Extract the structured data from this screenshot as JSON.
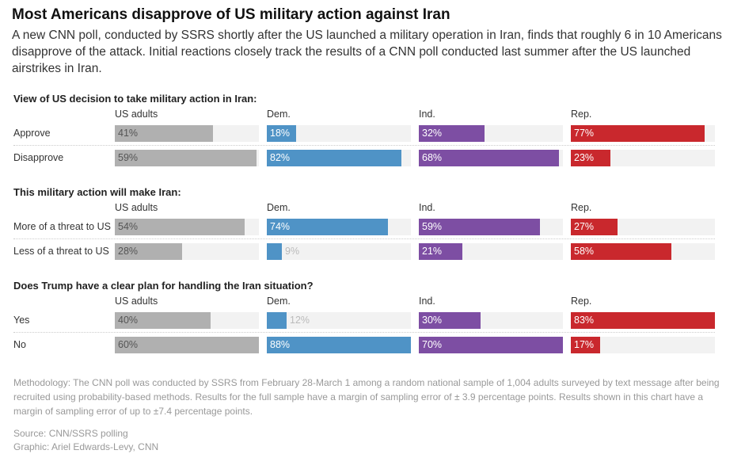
{
  "title": "Most Americans disapprove of US military action against Iran",
  "subtitle": "A new CNN poll, conducted by SSRS shortly after the US launched a military operation in Iran, finds that roughly 6 in 10 Americans disapprove of the attack. Initial reactions closely track the results of a CNN poll conducted last summer after the US launched airstrikes in Iran.",
  "chart_data": {
    "type": "bar",
    "groups": [
      "US adults",
      "Dem.",
      "Ind.",
      "Rep."
    ],
    "colors": [
      "#b0b0b0",
      "#4f93c6",
      "#7d4ea3",
      "#c9282d"
    ],
    "label_colors": [
      "#555555",
      "#ffffff",
      "#ffffff",
      "#ffffff"
    ],
    "sections": [
      {
        "title": "View of US decision to take military action in Iran:",
        "rows": [
          {
            "label": "Approve",
            "values": [
              41,
              18,
              32,
              77
            ]
          },
          {
            "label": "Disapprove",
            "values": [
              59,
              82,
              68,
              23
            ]
          }
        ]
      },
      {
        "title": "This military action will make Iran:",
        "rows": [
          {
            "label": "More of a threat to US",
            "values": [
              54,
              74,
              59,
              27
            ]
          },
          {
            "label": "Less of a threat to US",
            "values": [
              28,
              9,
              21,
              58
            ]
          }
        ]
      },
      {
        "title": "Does Trump have a clear plan for handling the Iran situation?",
        "rows": [
          {
            "label": "Yes",
            "values": [
              40,
              12,
              30,
              83
            ]
          },
          {
            "label": "No",
            "values": [
              60,
              88,
              70,
              17
            ]
          }
        ]
      }
    ],
    "unit": "%"
  },
  "methodology": "Methodology: The CNN poll was conducted by SSRS from February 28-March 1 among a random national sample of 1,004 adults surveyed by text message after being recruited using probability-based methods. Results for the full sample have a margin of sampling error of ± 3.9 percentage points. Results shown in this chart have a margin of sampling error of up to ±7.4 percentage points.",
  "source": "Source: CNN/SSRS polling",
  "graphic": "Graphic: Ariel Edwards-Levy, CNN"
}
